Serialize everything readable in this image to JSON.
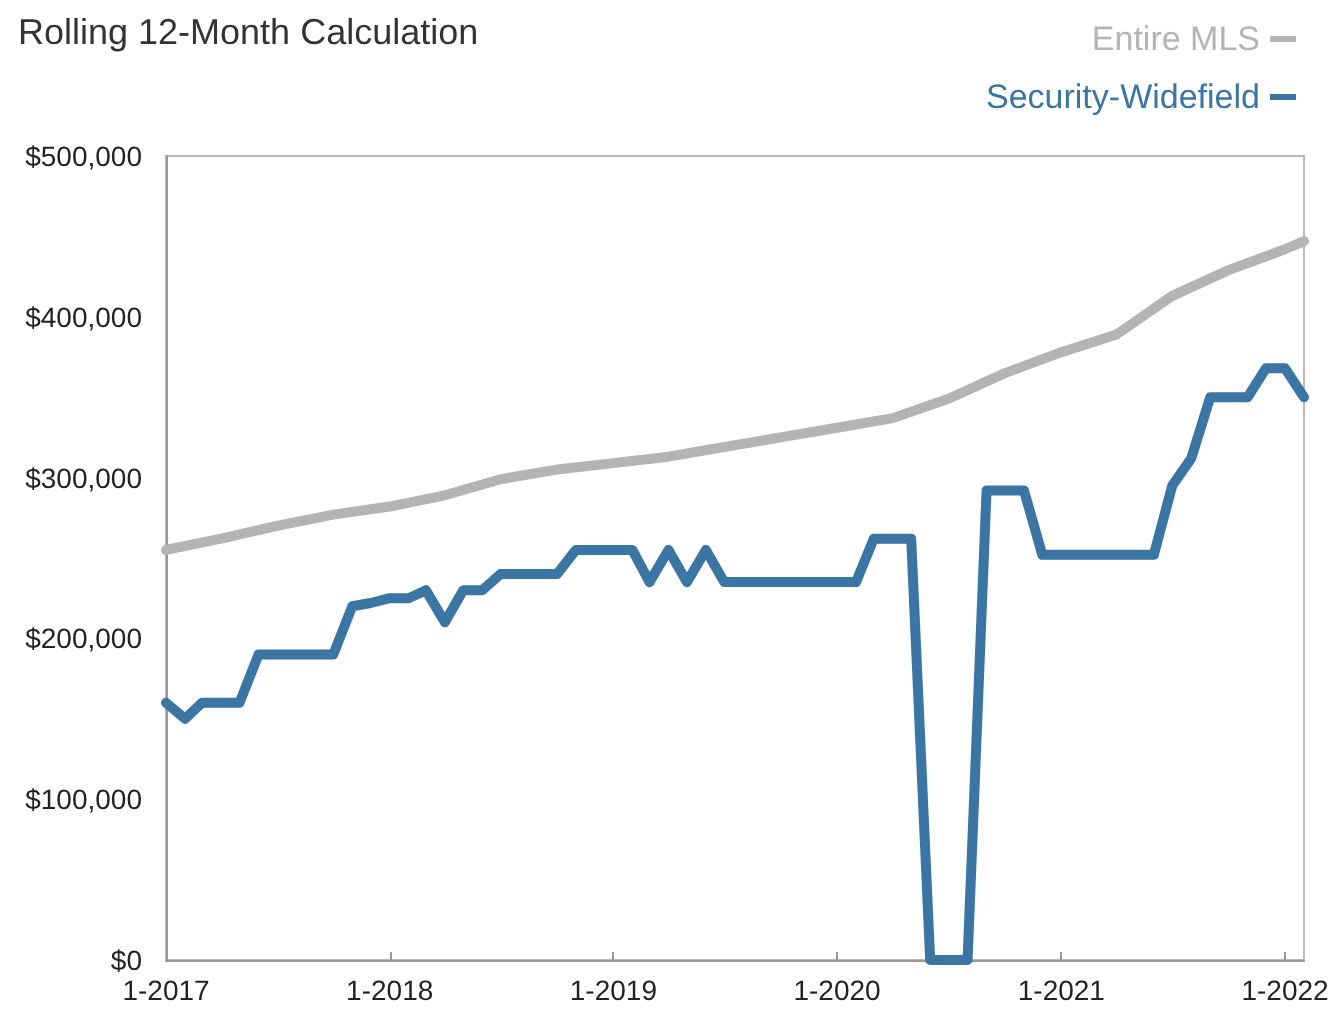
{
  "chart_data": {
    "type": "line",
    "title": "Rolling 12-Month Calculation",
    "x": [
      "2017-01",
      "2017-02",
      "2017-03",
      "2017-04",
      "2017-05",
      "2017-06",
      "2017-07",
      "2017-08",
      "2017-09",
      "2017-10",
      "2017-11",
      "2017-12",
      "2018-01",
      "2018-02",
      "2018-03",
      "2018-04",
      "2018-05",
      "2018-06",
      "2018-07",
      "2018-08",
      "2018-09",
      "2018-10",
      "2018-11",
      "2018-12",
      "2019-01",
      "2019-02",
      "2019-03",
      "2019-04",
      "2019-05",
      "2019-06",
      "2019-07",
      "2019-08",
      "2019-09",
      "2019-10",
      "2019-11",
      "2019-12",
      "2020-01",
      "2020-02",
      "2020-03",
      "2020-04",
      "2020-05",
      "2020-06",
      "2020-07",
      "2020-08",
      "2020-09",
      "2020-10",
      "2020-11",
      "2020-12",
      "2021-01",
      "2021-02",
      "2021-03",
      "2021-04",
      "2021-05",
      "2021-06",
      "2021-07",
      "2021-08",
      "2021-09",
      "2021-10",
      "2021-11",
      "2021-12",
      "2022-01",
      "2022-02"
    ],
    "series": [
      {
        "name": "Entire MLS",
        "color": "#b4b4b4",
        "x": [
          "2017-01",
          "2017-04",
          "2017-07",
          "2017-10",
          "2018-01",
          "2018-04",
          "2018-07",
          "2018-10",
          "2019-01",
          "2019-04",
          "2019-07",
          "2019-10",
          "2020-01",
          "2020-04",
          "2020-07",
          "2020-10",
          "2021-01",
          "2021-04",
          "2021-07",
          "2021-10",
          "2022-01",
          "2022-02"
        ],
        "values": [
          255000,
          262000,
          270000,
          277000,
          282000,
          289000,
          299000,
          305000,
          309000,
          313000,
          319000,
          325000,
          331000,
          337000,
          349000,
          365000,
          378000,
          389000,
          413000,
          429000,
          442000,
          447000
        ]
      },
      {
        "name": "Security-Widefield",
        "color": "#3a75a3",
        "values": [
          160000,
          150000,
          160000,
          160000,
          160000,
          190000,
          190000,
          190000,
          190000,
          190000,
          220000,
          222000,
          225000,
          225000,
          230000,
          210000,
          230000,
          230000,
          240000,
          240000,
          240000,
          240000,
          255000,
          255000,
          255000,
          255000,
          235000,
          255000,
          235000,
          255000,
          235000,
          235000,
          235000,
          235000,
          235000,
          235000,
          235000,
          235000,
          262000,
          262000,
          262000,
          0,
          0,
          0,
          292000,
          292000,
          292000,
          252000,
          252000,
          252000,
          252000,
          252000,
          252000,
          252000,
          295000,
          312000,
          350000,
          350000,
          350000,
          368000,
          368000,
          350000
        ]
      }
    ],
    "xlim": [
      "2017-01",
      "2022-02"
    ],
    "xticks": [
      {
        "value": "2017-01",
        "label": "1-2017"
      },
      {
        "value": "2018-01",
        "label": "1-2018"
      },
      {
        "value": "2019-01",
        "label": "1-2019"
      },
      {
        "value": "2020-01",
        "label": "1-2020"
      },
      {
        "value": "2021-01",
        "label": "1-2021"
      },
      {
        "value": "2022-01",
        "label": "1-2022"
      }
    ],
    "ylim": [
      0,
      500000
    ],
    "yticks": [
      {
        "value": 0,
        "label": "$0"
      },
      {
        "value": 100000,
        "label": "$100,000"
      },
      {
        "value": 200000,
        "label": "$200,000"
      },
      {
        "value": 300000,
        "label": "$300,000"
      },
      {
        "value": 400000,
        "label": "$400,000"
      },
      {
        "value": 500000,
        "label": "$500,000"
      }
    ],
    "marker": "none",
    "legend": "top right"
  }
}
